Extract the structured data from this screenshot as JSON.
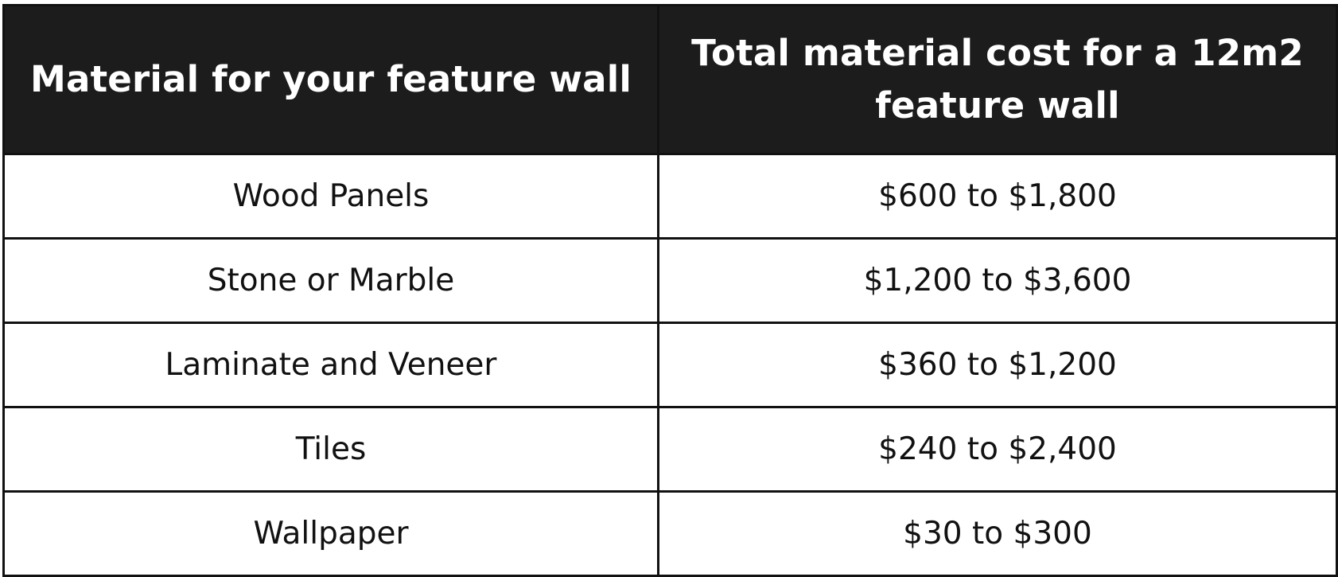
{
  "table": {
    "headers": [
      "Material for your feature wall",
      "Total material cost for a 12m2 feature wall"
    ],
    "rows": [
      {
        "material": "Wood Panels",
        "cost": "$600 to $1,800"
      },
      {
        "material": "Stone or Marble",
        "cost": "$1,200 to $3,600"
      },
      {
        "material": "Laminate and Veneer",
        "cost": "$360 to $1,200"
      },
      {
        "material": "Tiles",
        "cost": "$240 to $2,400"
      },
      {
        "material": "Wallpaper",
        "cost": "$30 to $300"
      }
    ]
  },
  "colors": {
    "header_background": "#1c1c1c",
    "header_text": "#ffffff",
    "body_background": "#ffffff",
    "body_text": "#111111",
    "border": "#111111"
  }
}
